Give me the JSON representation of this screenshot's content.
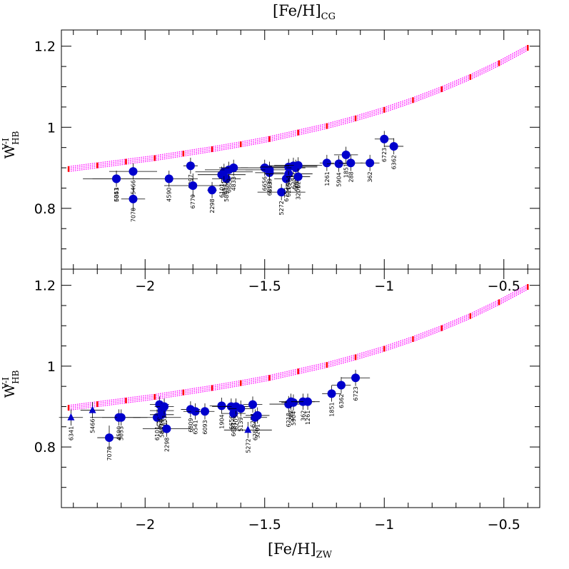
{
  "chart_data": [
    {
      "type": "scatter",
      "title": "",
      "xlabel": "[Fe/H]",
      "xlabel_sub": "CG",
      "ylabel": "W",
      "ylabel_sup": "V-I",
      "ylabel_sub": "HB",
      "xlim": [
        -2.35,
        -0.35
      ],
      "ylim": [
        0.65,
        1.24
      ],
      "x_ticks": [
        -2,
        -1.5,
        -1,
        -0.5
      ],
      "x_tick_labels": [
        "−2",
        "−1.5",
        "−1",
        "−0.5"
      ],
      "y_ticks": [
        0.8,
        1,
        1.2
      ],
      "y_tick_labels": [
        "0.8",
        "1",
        "1.2"
      ],
      "show_x_tick_labels": false,
      "marker_color": "#0000cc",
      "model_color": "#ff00ff",
      "model_point_color": "#ff0000",
      "model_x": [
        -2.32,
        -2.2,
        -2.08,
        -1.96,
        -1.84,
        -1.72,
        -1.6,
        -1.48,
        -1.36,
        -1.24,
        -1.12,
        -1.0,
        -0.88,
        -0.76,
        -0.64,
        -0.52,
        -0.4
      ],
      "model_y": [
        0.897,
        0.906,
        0.915,
        0.924,
        0.935,
        0.946,
        0.958,
        0.971,
        0.987,
        1.003,
        1.022,
        1.043,
        1.067,
        1.094,
        1.124,
        1.158,
        1.196
      ],
      "series": [
        {
          "marker": "circle",
          "points": [
            {
              "label": "6341",
              "x": -2.12,
              "y": 0.873,
              "xerr": 0.1,
              "yerr": 0.02
            },
            {
              "label": "5053",
              "x": -2.12,
              "y": 0.873,
              "xerr": 0.14,
              "yerr": 0.0
            },
            {
              "label": "5466",
              "x": -2.05,
              "y": 0.891,
              "xerr": 0.1,
              "yerr": 0.02
            },
            {
              "label": "7078",
              "x": -2.05,
              "y": 0.823,
              "xerr": 0.05,
              "yerr": 0.03
            },
            {
              "label": "4590",
              "x": -1.9,
              "y": 0.873,
              "xerr": 0.12,
              "yerr": 0.02
            },
            {
              "label": "6397",
              "x": -1.81,
              "y": 0.905,
              "xerr": 0.03,
              "yerr": 0.02
            },
            {
              "label": "6779",
              "x": -1.8,
              "y": 0.856,
              "xerr": 0.12,
              "yerr": 0.03
            },
            {
              "label": "2298",
              "x": -1.72,
              "y": 0.845,
              "xerr": 0.02,
              "yerr": 0.02
            },
            {
              "label": "6101",
              "x": -1.68,
              "y": 0.883,
              "xerr": 0.1,
              "yerr": 0.02
            },
            {
              "label": "5897",
              "x": -1.66,
              "y": 0.873,
              "xerr": 0.06,
              "yerr": 0.02
            },
            {
              "label": "6541",
              "x": -1.67,
              "y": 0.89,
              "xerr": 0.12,
              "yerr": 0.02
            },
            {
              "label": "6809",
              "x": -1.65,
              "y": 0.895,
              "xerr": 0.1,
              "yerr": 0.02
            },
            {
              "label": "4833",
              "x": -1.63,
              "y": 0.9,
              "xerr": 0.06,
              "yerr": 0.02
            },
            {
              "label": "6656",
              "x": -1.5,
              "y": 0.9,
              "xerr": 0.1,
              "yerr": 0.02
            },
            {
              "label": "6093",
              "x": -1.48,
              "y": 0.888,
              "xerr": 0.06,
              "yerr": 0.02
            },
            {
              "label": "5139",
              "x": -1.48,
              "y": 0.895,
              "xerr": 0.1,
              "yerr": 0.02
            },
            {
              "label": "5272",
              "x": -1.43,
              "y": 0.84,
              "xerr": 0.1,
              "yerr": 0.02
            },
            {
              "label": "6752",
              "x": -1.41,
              "y": 0.873,
              "xerr": 0.05,
              "yerr": 0.02
            },
            {
              "label": "6205",
              "x": -1.4,
              "y": 0.885,
              "xerr": 0.1,
              "yerr": 0.02
            },
            {
              "label": "1904",
              "x": -1.4,
              "y": 0.902,
              "xerr": 0.12,
              "yerr": 0.02
            },
            {
              "label": "6254",
              "x": -1.38,
              "y": 0.905,
              "xerr": 0.1,
              "yerr": 0.02
            },
            {
              "label": "6681",
              "x": -1.37,
              "y": 0.9,
              "xerr": 0.04,
              "yerr": 0.02
            },
            {
              "label": "6218",
              "x": -1.36,
              "y": 0.906,
              "xerr": 0.1,
              "yerr": 0.02
            },
            {
              "label": "3201",
              "x": -1.36,
              "y": 0.878,
              "xerr": 0.05,
              "yerr": 0.02
            },
            {
              "label": "1261",
              "x": -1.24,
              "y": 0.912,
              "xerr": 0.03,
              "yerr": 0.02
            },
            {
              "label": "5904",
              "x": -1.19,
              "y": 0.91,
              "xerr": 0.05,
              "yerr": 0.02
            },
            {
              "label": "1851",
              "x": -1.16,
              "y": 0.932,
              "xerr": 0.05,
              "yerr": 0.02
            },
            {
              "label": "288",
              "x": -1.14,
              "y": 0.912,
              "xerr": 0.05,
              "yerr": 0.02
            },
            {
              "label": "362",
              "x": -1.06,
              "y": 0.912,
              "xerr": 0.04,
              "yerr": 0.02
            },
            {
              "label": "6723",
              "x": -1.0,
              "y": 0.971,
              "xerr": 0.04,
              "yerr": 0.02
            },
            {
              "label": "6362",
              "x": -0.96,
              "y": 0.953,
              "xerr": 0.04,
              "yerr": 0.02
            }
          ]
        }
      ]
    },
    {
      "type": "scatter",
      "title": "",
      "xlabel": "[Fe/H]",
      "xlabel_sub": "ZW",
      "ylabel": "W",
      "ylabel_sup": "V-I",
      "ylabel_sub": "HB",
      "xlim": [
        -2.35,
        -0.35
      ],
      "ylim": [
        0.65,
        1.24
      ],
      "x_ticks": [
        -2,
        -1.5,
        -1,
        -0.5
      ],
      "x_tick_labels": [
        "−2",
        "−1.5",
        "−1",
        "−0.5"
      ],
      "y_ticks": [
        0.8,
        1,
        1.2
      ],
      "y_tick_labels": [
        "0.8",
        "1",
        "1.2"
      ],
      "show_x_tick_labels": true,
      "marker_color": "#0000cc",
      "model_color": "#ff00ff",
      "model_point_color": "#ff0000",
      "model_x": [
        -2.32,
        -2.2,
        -2.08,
        -1.96,
        -1.84,
        -1.72,
        -1.6,
        -1.48,
        -1.36,
        -1.24,
        -1.12,
        -1.0,
        -0.88,
        -0.76,
        -0.64,
        -0.52,
        -0.4
      ],
      "model_y": [
        0.897,
        0.906,
        0.915,
        0.924,
        0.935,
        0.946,
        0.958,
        0.971,
        0.987,
        1.003,
        1.022,
        1.043,
        1.067,
        1.094,
        1.124,
        1.158,
        1.196
      ],
      "series": [
        {
          "marker": "triangle",
          "points": [
            {
              "label": "6341",
              "x": -2.31,
              "y": 0.873,
              "xerr": 0.05,
              "yerr": 0.02
            },
            {
              "label": "5466",
              "x": -2.22,
              "y": 0.891,
              "xerr": 0.05,
              "yerr": 0.02
            },
            {
              "label": "5272",
              "x": -1.57,
              "y": 0.842,
              "xerr": 0.1,
              "yerr": 0.02
            }
          ]
        },
        {
          "marker": "circle",
          "points": [
            {
              "label": "4590",
              "x": -2.11,
              "y": 0.873,
              "xerr": 0.12,
              "yerr": 0.02
            },
            {
              "label": "5053",
              "x": -2.1,
              "y": 0.873,
              "xerr": 0.08,
              "yerr": 0.02
            },
            {
              "label": "7078",
              "x": -2.15,
              "y": 0.823,
              "xerr": 0.05,
              "yerr": 0.03
            },
            {
              "label": "6101",
              "x": -1.95,
              "y": 0.873,
              "xerr": 0.1,
              "yerr": 0.02
            },
            {
              "label": "6397",
              "x": -1.94,
              "y": 0.905,
              "xerr": 0.04,
              "yerr": 0.02
            },
            {
              "label": "6779",
              "x": -1.93,
              "y": 0.89,
              "xerr": 0.05,
              "yerr": 0.02
            },
            {
              "label": "5897",
              "x": -1.93,
              "y": 0.88,
              "xerr": 0.05,
              "yerr": 0.02
            },
            {
              "label": "4833",
              "x": -1.92,
              "y": 0.9,
              "xerr": 0.04,
              "yerr": 0.02
            },
            {
              "label": "2298",
              "x": -1.91,
              "y": 0.845,
              "xerr": 0.1,
              "yerr": 0.02
            },
            {
              "label": "6809",
              "x": -1.81,
              "y": 0.893,
              "xerr": 0.04,
              "yerr": 0.02
            },
            {
              "label": "6541",
              "x": -1.79,
              "y": 0.888,
              "xerr": 0.05,
              "yerr": 0.02
            },
            {
              "label": "6093",
              "x": -1.75,
              "y": 0.888,
              "xerr": 0.04,
              "yerr": 0.02
            },
            {
              "label": "1904",
              "x": -1.68,
              "y": 0.902,
              "xerr": 0.05,
              "yerr": 0.02
            },
            {
              "label": "6656",
              "x": -1.64,
              "y": 0.9,
              "xerr": 0.08,
              "yerr": 0.02
            },
            {
              "label": "6681",
              "x": -1.63,
              "y": 0.883,
              "xerr": 0.05,
              "yerr": 0.02
            },
            {
              "label": "6205",
              "x": -1.62,
              "y": 0.9,
              "xerr": 0.05,
              "yerr": 0.02
            },
            {
              "label": "5139",
              "x": -1.6,
              "y": 0.895,
              "xerr": 0.05,
              "yerr": 0.02
            },
            {
              "label": "6254",
              "x": -1.55,
              "y": 0.905,
              "xerr": 0.04,
              "yerr": 0.02
            },
            {
              "label": "6752",
              "x": -1.54,
              "y": 0.873,
              "xerr": 0.05,
              "yerr": 0.02
            },
            {
              "label": "3201",
              "x": -1.53,
              "y": 0.878,
              "xerr": 0.05,
              "yerr": 0.02
            },
            {
              "label": "6218",
              "x": -1.4,
              "y": 0.906,
              "xerr": 0.08,
              "yerr": 0.02
            },
            {
              "label": "5904",
              "x": -1.38,
              "y": 0.91,
              "xerr": 0.05,
              "yerr": 0.02
            },
            {
              "label": "288",
              "x": -1.39,
              "y": 0.912,
              "xerr": 0.05,
              "yerr": 0.02
            },
            {
              "label": "362",
              "x": -1.34,
              "y": 0.912,
              "xerr": 0.05,
              "yerr": 0.02
            },
            {
              "label": "1261",
              "x": -1.32,
              "y": 0.912,
              "xerr": 0.05,
              "yerr": 0.02
            },
            {
              "label": "1851",
              "x": -1.22,
              "y": 0.932,
              "xerr": 0.04,
              "yerr": 0.02
            },
            {
              "label": "6362",
              "x": -1.18,
              "y": 0.953,
              "xerr": 0.04,
              "yerr": 0.02
            },
            {
              "label": "6723",
              "x": -1.12,
              "y": 0.971,
              "xerr": 0.06,
              "yerr": 0.02
            }
          ]
        }
      ]
    }
  ]
}
